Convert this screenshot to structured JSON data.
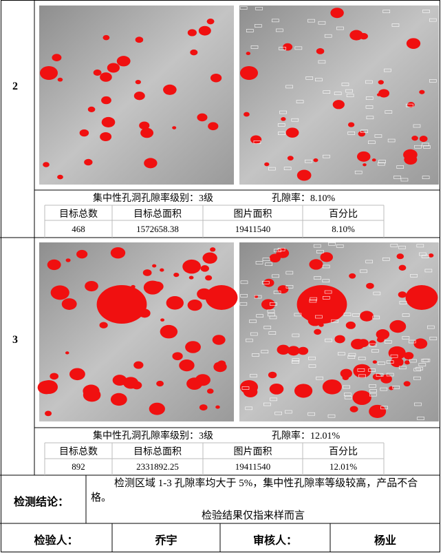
{
  "sections": [
    {
      "index": "2",
      "level_label": "集中性孔洞孔隙率级别：3级",
      "porosity_label": "孔隙率：8.10%",
      "table": {
        "headers": [
          "目标总数",
          "目标总面积",
          "图片面积",
          "百分比"
        ],
        "rows": [
          [
            "468",
            "1572658.38",
            "19411540",
            "8.10%"
          ]
        ]
      }
    },
    {
      "index": "3",
      "level_label": "集中性孔洞孔隙率级别：3级",
      "porosity_label": "孔隙率：12.01%",
      "table": {
        "headers": [
          "目标总数",
          "目标总面积",
          "图片面积",
          "百分比"
        ],
        "rows": [
          [
            "892",
            "2331892.25",
            "19411540",
            "12.01%"
          ]
        ]
      }
    }
  ],
  "conclusion": {
    "label": "检测结论：",
    "text": "检测区域 1-3 孔隙率均大于 5%，集中性孔隙率等级较高，产品不合格。",
    "note": "检验结果仅指来样而言"
  },
  "signatures": {
    "inspector_label": "检验人：",
    "inspector": "乔宇",
    "reviewer_label": "审核人：",
    "reviewer": "杨业"
  }
}
